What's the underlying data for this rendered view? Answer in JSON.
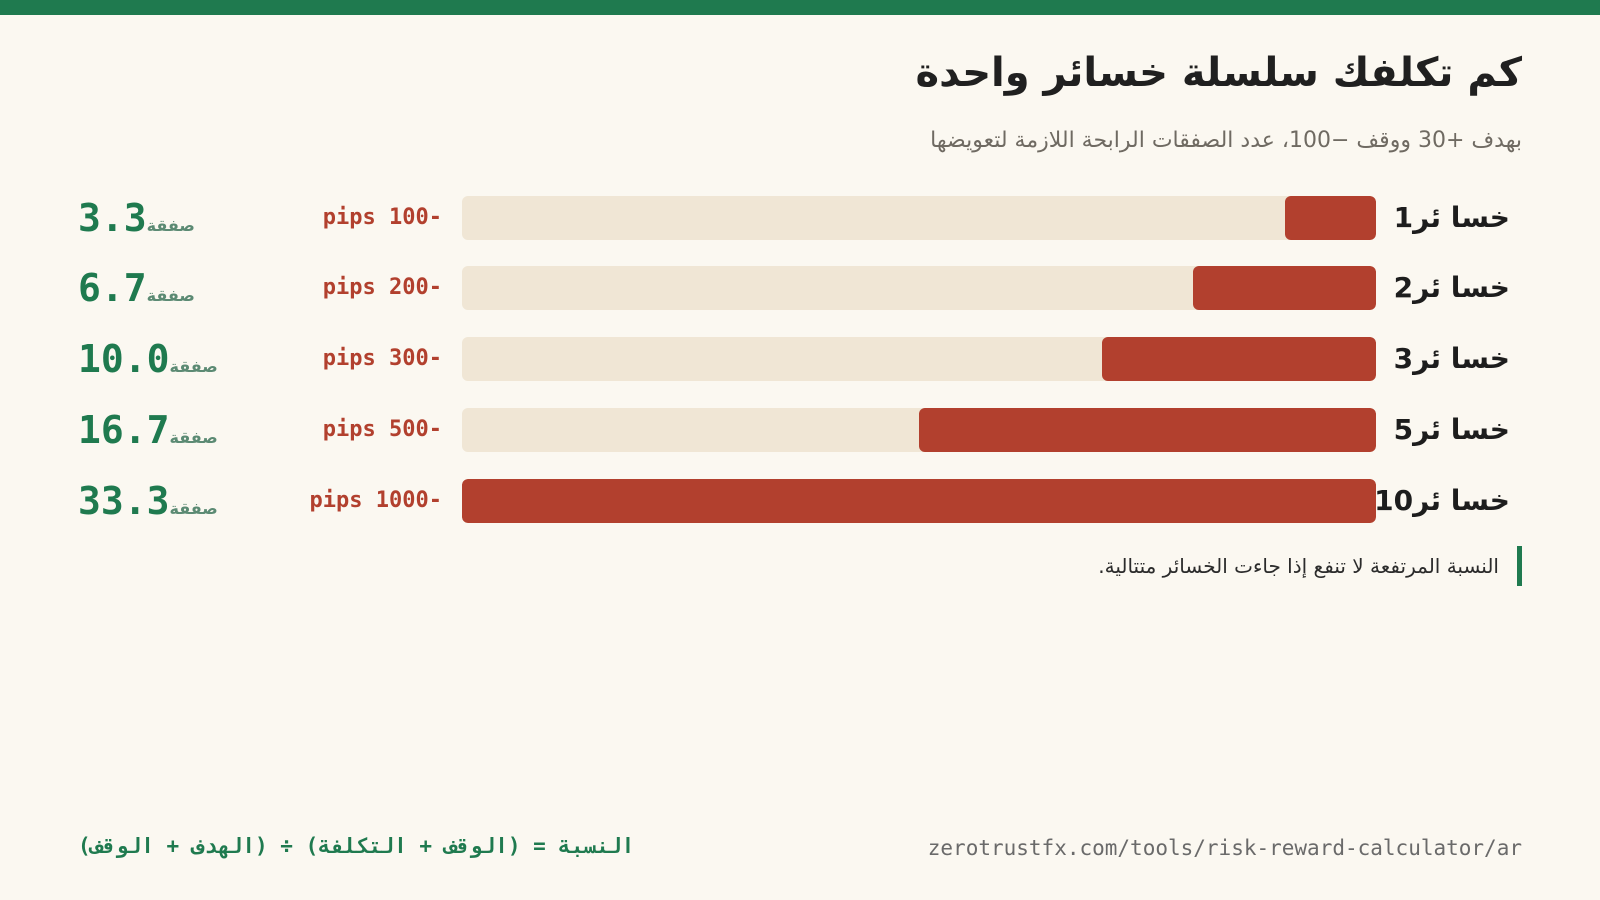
{
  "colors": {
    "accent": "#1f7a4f",
    "loss": "#b2402e",
    "track": "#f0e6d5",
    "background": "#fbf8f1"
  },
  "header": {
    "title": "كم تكلفك سلسلة خسائر واحدة",
    "subtitle": "بهدف +30 ووقف −100، عدد الصفقات الرابحة اللازمة لتعويضها"
  },
  "chart_data": {
    "type": "bar",
    "orientation": "horizontal",
    "categories": [
      "1خسا ئر",
      "2خسا ئر",
      "3خسا ئر",
      "5خسا ئر",
      "10خسا ئر"
    ],
    "values": [
      -100,
      -200,
      -300,
      -500,
      -1000
    ],
    "value_labels": [
      "pips 100-",
      "pips 200-",
      "pips 300-",
      "pips 500-",
      "pips 1000-"
    ],
    "trades_needed": [
      "3.3",
      "6.7",
      "10.0",
      "16.7",
      "33.3"
    ],
    "trades_unit": "صفقة",
    "xlim": [
      0,
      1000
    ],
    "grid": false,
    "legend": "none"
  },
  "note": "النسبة المرتفعة لا تنفع إذا جاءت الخسائر متتالية.",
  "footer": {
    "url": "zerotrustfx.com/tools/risk-reward-calculator/ar",
    "formula": "النسبة = (الوقف + التكلفة) ÷ (الهدف + الوقف)"
  }
}
